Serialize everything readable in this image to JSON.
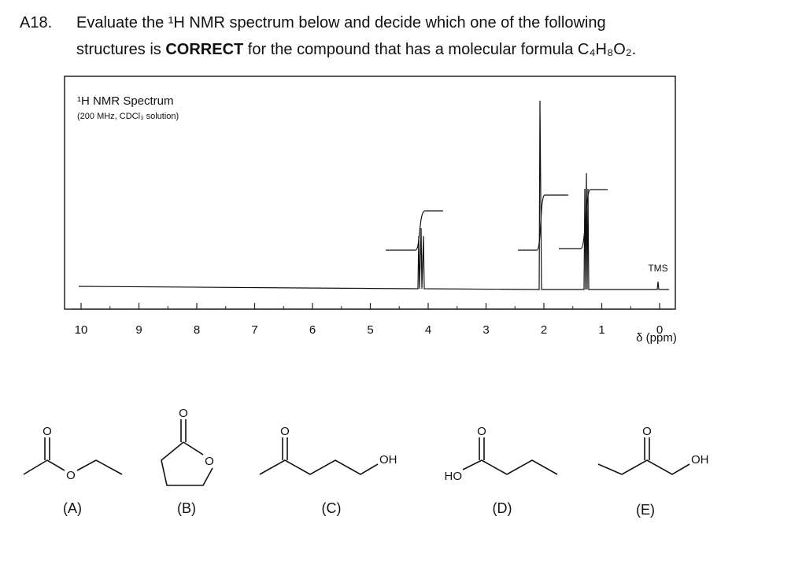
{
  "question": {
    "number": "A18.",
    "line1": "Evaluate the ¹H NMR spectrum below and decide which one of the following",
    "line2_before": "structures is ",
    "line2_bold": "CORRECT",
    "line2_after": " for the compound that has a molecular formula C₄H₈O₂."
  },
  "spectrum": {
    "title": "¹H NMR Spectrum",
    "subtitle": "(200 MHz, CDCl₃ solution)",
    "tick_labels": [
      "10",
      "9",
      "8",
      "7",
      "6",
      "5",
      "4",
      "3",
      "2",
      "1",
      "0"
    ],
    "tms_label": "TMS",
    "axis_label": "δ (ppm)"
  },
  "options": [
    {
      "label": "(A)",
      "atoms": [
        "O",
        "O"
      ]
    },
    {
      "label": "(B)",
      "atoms": [
        "O",
        "O"
      ]
    },
    {
      "label": "(C)",
      "atoms": [
        "O",
        "OH"
      ]
    },
    {
      "label": "(D)",
      "atoms": [
        "O",
        "HO"
      ]
    },
    {
      "label": "(E)",
      "atoms": [
        "O",
        "OH"
      ]
    }
  ]
}
